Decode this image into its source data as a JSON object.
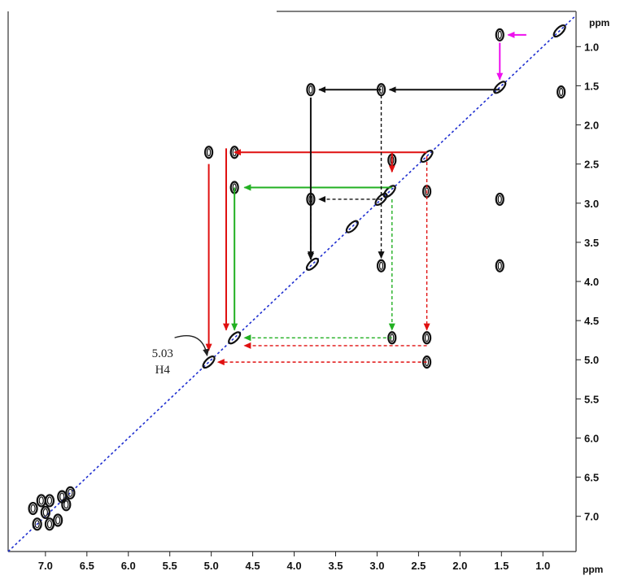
{
  "chart_data": {
    "type": "contour-2d-nmr",
    "x_unit": "ppm",
    "y_unit": "ppm",
    "x_range": [
      7.45,
      0.6
    ],
    "y_range": [
      0.55,
      7.45
    ],
    "x_ticks": [
      "7.0",
      "6.5",
      "6.0",
      "5.5",
      "5.0",
      "4.5",
      "4.0",
      "3.5",
      "3.0",
      "2.5",
      "2.0",
      "1.5",
      "1.0"
    ],
    "y_ticks": [
      "1.0",
      "1.5",
      "2.0",
      "2.5",
      "3.0",
      "3.5",
      "4.0",
      "4.5",
      "5.0",
      "5.5",
      "6.0",
      "6.5",
      "7.0"
    ],
    "diagonal_color": "#1f2fd0",
    "annotation": {
      "value": "5.03",
      "label": "H4",
      "x": 5.03,
      "y": 5.03
    },
    "cross_peaks": [
      {
        "x": 1.52,
        "y": 0.85
      },
      {
        "x": 0.78,
        "y": 1.58
      },
      {
        "x": 3.8,
        "y": 1.55
      },
      {
        "x": 2.95,
        "y": 1.55
      },
      {
        "x": 5.03,
        "y": 2.35
      },
      {
        "x": 4.72,
        "y": 2.35
      },
      {
        "x": 2.82,
        "y": 2.45
      },
      {
        "x": 4.72,
        "y": 2.8
      },
      {
        "x": 3.8,
        "y": 2.95
      },
      {
        "x": 2.4,
        "y": 2.85
      },
      {
        "x": 1.52,
        "y": 2.95
      },
      {
        "x": 2.95,
        "y": 3.8
      },
      {
        "x": 1.52,
        "y": 3.8
      },
      {
        "x": 2.82,
        "y": 4.72
      },
      {
        "x": 2.4,
        "y": 4.72
      },
      {
        "x": 2.4,
        "y": 5.03
      }
    ],
    "diagonal_peaks": [
      0.8,
      1.52,
      2.4,
      2.85,
      2.95,
      3.3,
      3.78,
      4.72,
      5.03
    ],
    "aromatic_peaks": [
      {
        "x": 7.1,
        "y": 7.1
      },
      {
        "x": 7.0,
        "y": 6.95
      },
      {
        "x": 6.95,
        "y": 7.1
      },
      {
        "x": 7.05,
        "y": 6.8
      },
      {
        "x": 6.8,
        "y": 6.75
      },
      {
        "x": 6.7,
        "y": 6.7
      },
      {
        "x": 6.85,
        "y": 7.05
      },
      {
        "x": 7.15,
        "y": 6.9
      },
      {
        "x": 6.75,
        "y": 6.85
      },
      {
        "x": 6.95,
        "y": 6.8
      }
    ],
    "connectivity_arrows": [
      {
        "color": "#e01010",
        "style": "solid",
        "from": [
          2.4,
          2.35
        ],
        "to": [
          4.72,
          2.35
        ]
      },
      {
        "color": "#e01010",
        "style": "solid",
        "from": [
          5.03,
          2.5
        ],
        "to": [
          5.03,
          4.88
        ]
      },
      {
        "color": "#e01010",
        "style": "solid",
        "from": [
          4.82,
          2.3
        ],
        "to": [
          4.82,
          4.62
        ]
      },
      {
        "color": "#e01010",
        "style": "solid",
        "from": [
          2.82,
          2.35
        ],
        "to": [
          2.82,
          2.6
        ]
      },
      {
        "color": "#e01010",
        "style": "dashed",
        "from": [
          2.4,
          2.4
        ],
        "to": [
          2.4,
          4.62
        ]
      },
      {
        "color": "#e01010",
        "style": "dashed",
        "from": [
          2.4,
          4.82
        ],
        "to": [
          4.6,
          4.82
        ]
      },
      {
        "color": "#e01010",
        "style": "dashed",
        "from": [
          2.4,
          5.03
        ],
        "to": [
          4.92,
          5.03
        ]
      },
      {
        "color": "#22b022",
        "style": "solid",
        "from": [
          2.82,
          2.8
        ],
        "to": [
          4.6,
          2.8
        ]
      },
      {
        "color": "#22b022",
        "style": "solid",
        "from": [
          4.72,
          2.8
        ],
        "to": [
          4.72,
          4.62
        ]
      },
      {
        "color": "#22b022",
        "style": "dashed",
        "from": [
          2.82,
          2.95
        ],
        "to": [
          2.82,
          4.62
        ]
      },
      {
        "color": "#22b022",
        "style": "dashed",
        "from": [
          2.82,
          4.72
        ],
        "to": [
          4.6,
          4.72
        ]
      },
      {
        "color": "#111111",
        "style": "solid",
        "from": [
          1.52,
          1.55
        ],
        "to": [
          2.85,
          1.55
        ]
      },
      {
        "color": "#111111",
        "style": "solid",
        "from": [
          2.95,
          1.55
        ],
        "to": [
          3.7,
          1.55
        ]
      },
      {
        "color": "#111111",
        "style": "solid",
        "from": [
          3.8,
          1.65
        ],
        "to": [
          3.8,
          3.72
        ]
      },
      {
        "color": "#111111",
        "style": "dashed",
        "from": [
          2.95,
          1.62
        ],
        "to": [
          2.95,
          3.7
        ]
      },
      {
        "color": "#111111",
        "style": "dashed",
        "from": [
          2.95,
          2.95
        ],
        "to": [
          3.7,
          2.95
        ]
      },
      {
        "color": "#111111",
        "style": "dashed",
        "from": [
          3.8,
          2.98
        ],
        "to": [
          3.8,
          3.7
        ]
      },
      {
        "color": "#ee10ee",
        "style": "solid",
        "from": [
          1.2,
          0.85
        ],
        "to": [
          1.42,
          0.85
        ]
      },
      {
        "color": "#ee10ee",
        "style": "solid",
        "from": [
          1.52,
          0.95
        ],
        "to": [
          1.52,
          1.42
        ]
      }
    ]
  }
}
